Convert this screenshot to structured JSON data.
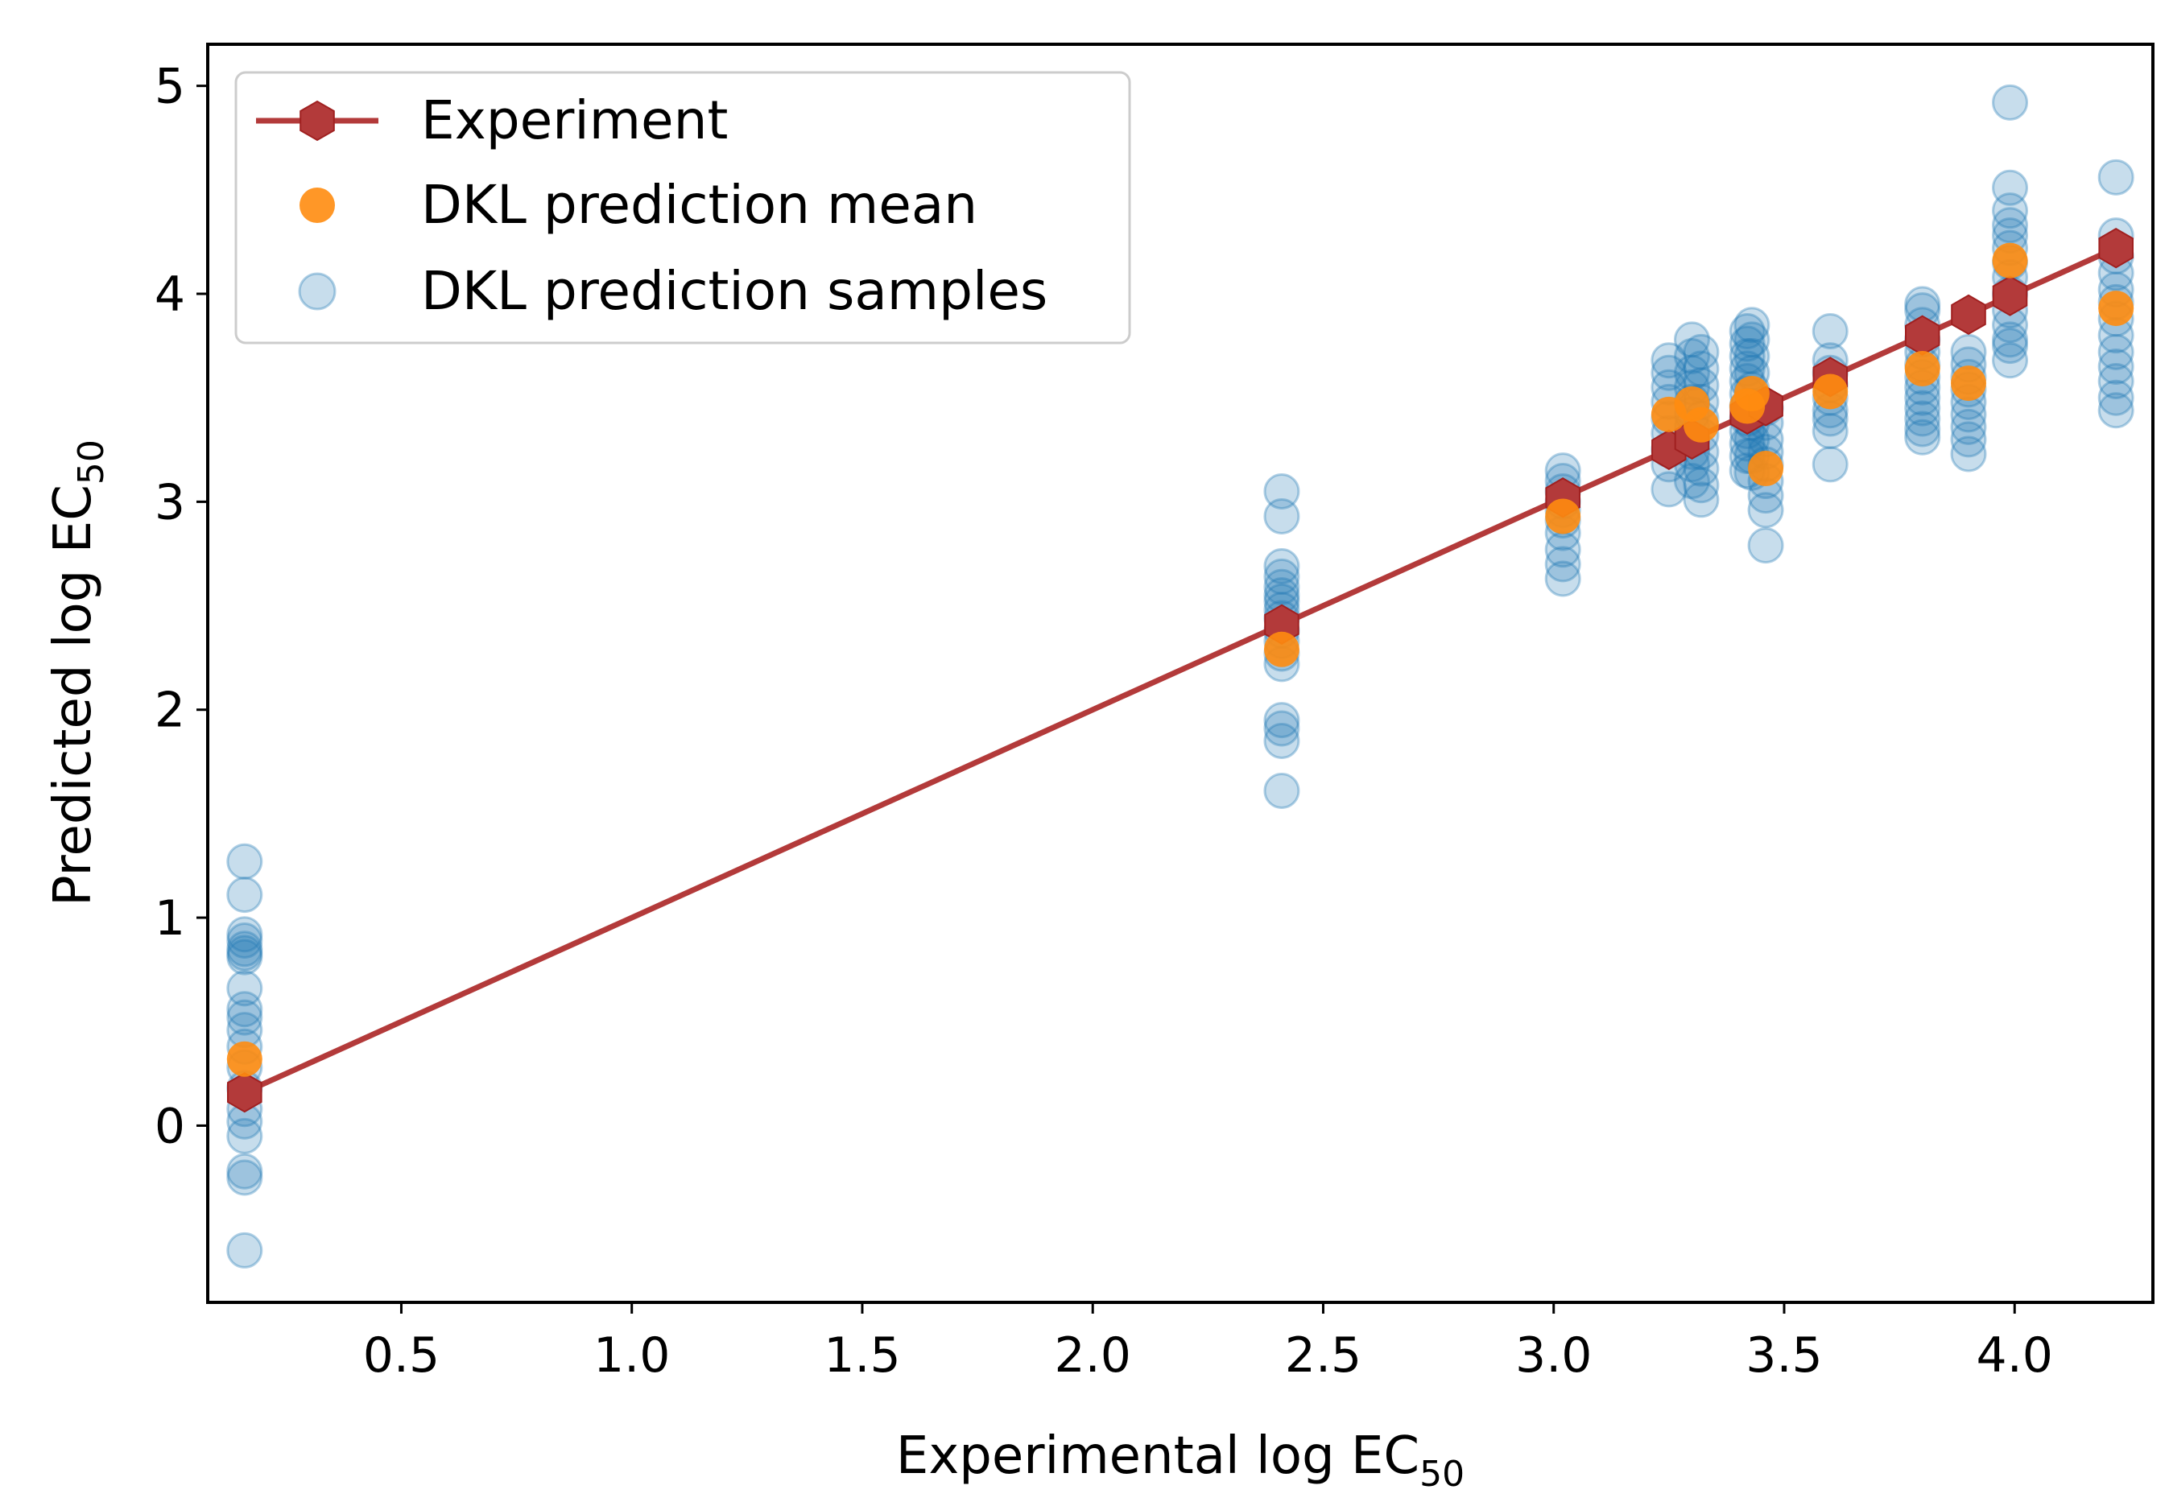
{
  "chart_data": {
    "type": "scatter",
    "xlabel": "Experimental log EC50",
    "xlabel_parts": {
      "text": "Experimental log EC",
      "sub": "50"
    },
    "ylabel": "Predicted log EC50",
    "ylabel_parts": {
      "text": "Predicted log EC",
      "sub": "50"
    },
    "xlim": [
      0.08,
      4.3
    ],
    "ylim": [
      -0.85,
      5.2
    ],
    "xticks": [
      0.5,
      1.0,
      1.5,
      2.0,
      2.5,
      3.0,
      3.5,
      4.0
    ],
    "xtick_labels": [
      "0.5",
      "1.0",
      "1.5",
      "2.0",
      "2.5",
      "3.0",
      "3.5",
      "4.0"
    ],
    "yticks": [
      0,
      1,
      2,
      3,
      4,
      5
    ],
    "ytick_labels": [
      "0",
      "1",
      "2",
      "3",
      "4",
      "5"
    ],
    "legend_position": "upper-left",
    "colors": {
      "experiment": "#b33a3a",
      "mean": "#ff8c0f",
      "samples": "#1f77b4"
    },
    "series": [
      {
        "name": "Experiment",
        "kind": "line-hexagon",
        "x": [
          0.16,
          2.41,
          3.02,
          3.25,
          3.3,
          3.42,
          3.46,
          3.6,
          3.8,
          3.9,
          3.99,
          4.22
        ],
        "y": [
          0.16,
          2.41,
          3.02,
          3.25,
          3.3,
          3.42,
          3.46,
          3.6,
          3.8,
          3.9,
          3.99,
          4.22
        ]
      },
      {
        "name": "DKL prediction mean",
        "kind": "points",
        "x": [
          0.16,
          2.41,
          3.02,
          3.25,
          3.3,
          3.32,
          3.42,
          3.43,
          3.46,
          3.6,
          3.8,
          3.9,
          3.99,
          4.22
        ],
        "y": [
          0.32,
          2.29,
          2.93,
          3.42,
          3.47,
          3.37,
          3.46,
          3.52,
          3.16,
          3.53,
          3.64,
          3.57,
          4.16,
          3.93
        ]
      },
      {
        "name": "DKL prediction samples",
        "kind": "points-translucent",
        "groups": [
          {
            "x": 0.16,
            "y": [
              1.27,
              1.11,
              0.92,
              0.89,
              0.85,
              0.83,
              0.81,
              0.66,
              0.56,
              0.52,
              0.46,
              0.38,
              0.28,
              0.18,
              0.08,
              0.02,
              -0.05,
              -0.22,
              -0.25,
              -0.6
            ]
          },
          {
            "x": 2.41,
            "y": [
              3.05,
              2.93,
              2.69,
              2.64,
              2.59,
              2.55,
              2.52,
              2.48,
              2.44,
              2.38,
              2.33,
              2.27,
              2.22,
              1.95,
              1.91,
              1.85,
              1.61
            ]
          },
          {
            "x": 3.02,
            "y": [
              3.15,
              3.1,
              3.05,
              3.0,
              2.96,
              2.91,
              2.85,
              2.77,
              2.7,
              2.63
            ]
          },
          {
            "x": 3.25,
            "y": [
              3.68,
              3.62,
              3.55,
              3.48,
              3.4,
              3.33,
              3.25,
              3.18,
              3.06
            ]
          },
          {
            "x": 3.3,
            "y": [
              3.78,
              3.7,
              3.62,
              3.55,
              3.48,
              3.42,
              3.36,
              3.3,
              3.24,
              3.18,
              3.1
            ]
          },
          {
            "x": 3.32,
            "y": [
              3.72,
              3.64,
              3.56,
              3.48,
              3.4,
              3.32,
              3.24,
              3.16,
              3.08,
              3.01
            ]
          },
          {
            "x": 3.42,
            "y": [
              3.82,
              3.76,
              3.7,
              3.64,
              3.58,
              3.52,
              3.46,
              3.4,
              3.34,
              3.28,
              3.22,
              3.15
            ]
          },
          {
            "x": 3.43,
            "y": [
              3.85,
              3.78,
              3.7,
              3.62,
              3.54,
              3.46,
              3.38,
              3.3,
              3.22,
              3.14
            ]
          },
          {
            "x": 3.46,
            "y": [
              3.45,
              3.38,
              3.3,
              3.24,
              3.18,
              3.1,
              3.03,
              2.96,
              2.79
            ]
          },
          {
            "x": 3.6,
            "y": [
              3.82,
              3.68,
              3.62,
              3.56,
              3.5,
              3.44,
              3.4,
              3.34,
              3.18
            ]
          },
          {
            "x": 3.8,
            "y": [
              3.95,
              3.92,
              3.85,
              3.78,
              3.72,
              3.66,
              3.6,
              3.55,
              3.5,
              3.45,
              3.4,
              3.35,
              3.31
            ]
          },
          {
            "x": 3.9,
            "y": [
              3.72,
              3.66,
              3.6,
              3.54,
              3.48,
              3.42,
              3.36,
              3.3,
              3.23
            ]
          },
          {
            "x": 3.99,
            "y": [
              4.92,
              4.51,
              4.4,
              4.33,
              4.28,
              4.22,
              4.15,
              4.08,
              4.0,
              3.92,
              3.85,
              3.78,
              3.75,
              3.68
            ]
          },
          {
            "x": 4.22,
            "y": [
              4.56,
              4.28,
              4.18,
              4.1,
              4.02,
              3.96,
              3.88,
              3.8,
              3.72,
              3.65,
              3.58,
              3.5,
              3.44
            ]
          }
        ]
      }
    ]
  }
}
